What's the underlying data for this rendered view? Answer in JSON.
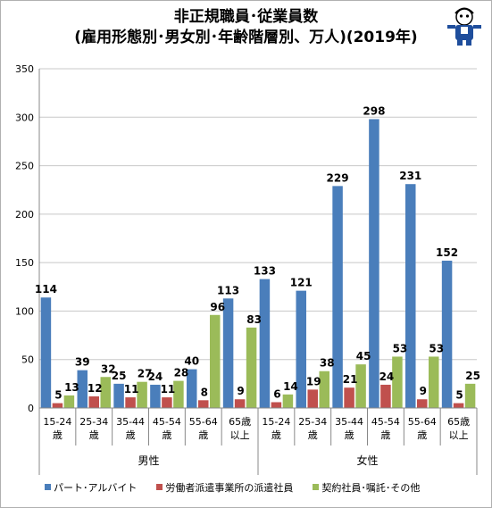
{
  "title_line1": "非正規職員･従業員数",
  "title_line2": "(雇用形態別･男女別･年齢階層別、万人)(2019年)",
  "colors": {
    "series1": "#4a7ebb",
    "series2": "#c0504d",
    "series3": "#9bbb59",
    "grid": "#c8c8c8",
    "axis": "#888888"
  },
  "chart_data": {
    "type": "bar",
    "title": "非正規職員･従業員数 (雇用形態別･男女別･年齢階層別、万人)(2019年)",
    "ylim": [
      0,
      350
    ],
    "yticks": [
      0,
      50,
      100,
      150,
      200,
      250,
      300,
      350
    ],
    "grid": true,
    "legend_position": "bottom",
    "groups": [
      {
        "label": "男性",
        "categories": [
          [
            "15-24",
            "歳"
          ],
          [
            "25-34",
            "歳"
          ],
          [
            "35-44",
            "歳"
          ],
          [
            "45-54",
            "歳"
          ],
          [
            "55-64",
            "歳"
          ],
          [
            "65歳",
            "以上"
          ]
        ]
      },
      {
        "label": "女性",
        "categories": [
          [
            "15-24",
            "歳"
          ],
          [
            "25-34",
            "歳"
          ],
          [
            "35-44",
            "歳"
          ],
          [
            "45-54",
            "歳"
          ],
          [
            "55-64",
            "歳"
          ],
          [
            "65歳",
            "以上"
          ]
        ]
      }
    ],
    "series": [
      {
        "name": "パート･アルバイト",
        "values": [
          114,
          39,
          25,
          24,
          40,
          113,
          133,
          121,
          229,
          298,
          231,
          152
        ]
      },
      {
        "name": "労働者派遣事業所の派遣社員",
        "values": [
          5,
          12,
          11,
          11,
          8,
          9,
          6,
          19,
          21,
          24,
          9,
          5
        ]
      },
      {
        "name": "契約社員･嘱託･その他",
        "values": [
          13,
          32,
          27,
          28,
          96,
          83,
          14,
          38,
          45,
          53,
          53,
          25
        ]
      }
    ]
  }
}
